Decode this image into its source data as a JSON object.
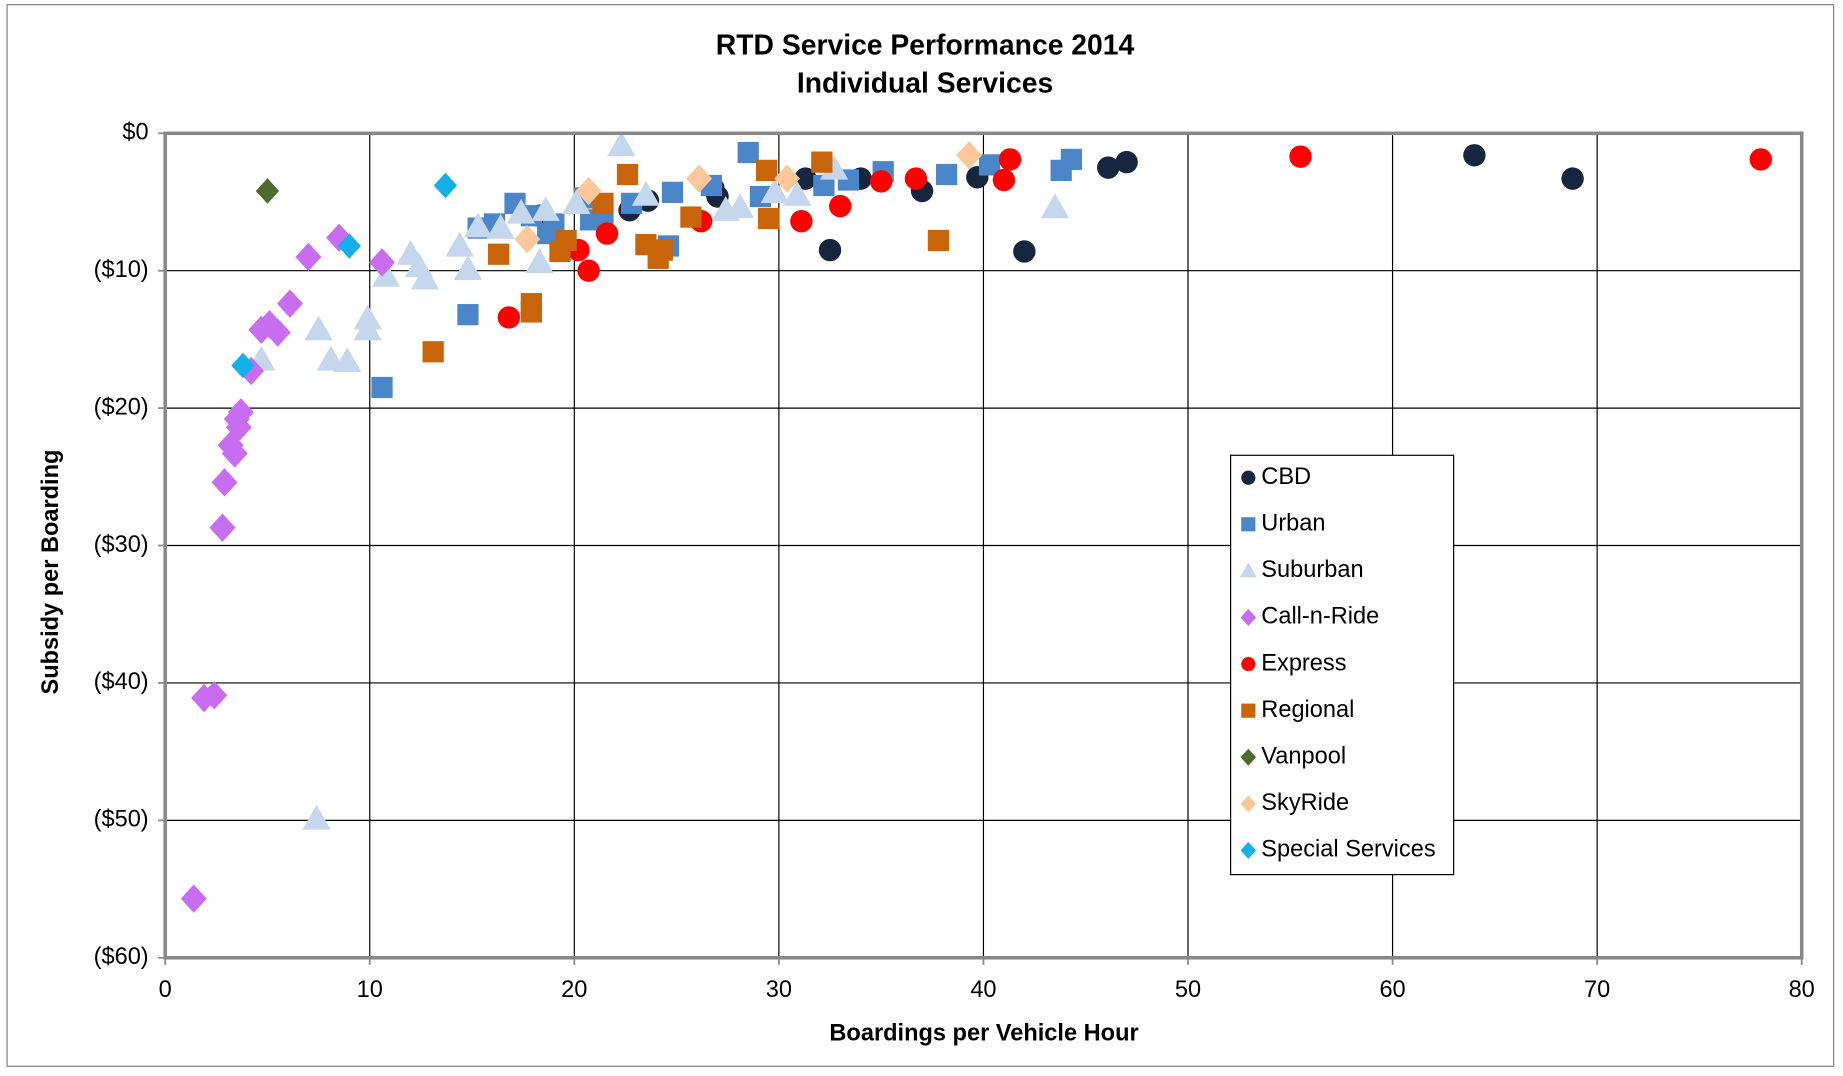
{
  "chart_data": {
    "type": "scatter",
    "title": "RTD Service Performance 2014",
    "subtitle": "Individual Services",
    "x_label": "Boardings per Vehicle Hour",
    "y_label": "Subsidy per Boarding",
    "xlim": [
      0,
      80
    ],
    "xticks": [
      0,
      10,
      20,
      30,
      40,
      50,
      60,
      70,
      80
    ],
    "ylim": [
      -60,
      0
    ],
    "yticks": [
      {
        "value": -60,
        "label": "($60)"
      },
      {
        "value": -50,
        "label": "($50)"
      },
      {
        "value": -40,
        "label": "($40)"
      },
      {
        "value": -30,
        "label": "($30)"
      },
      {
        "value": -20,
        "label": "($20)"
      },
      {
        "value": -10,
        "label": "($10)"
      },
      {
        "value": 0,
        "label": "$0"
      }
    ],
    "grid": true,
    "legend": "right",
    "series": [
      {
        "name": "CBD",
        "color": "#17263f",
        "marker": "circle",
        "x": [
          32.5,
          42.0,
          37.0,
          39.7,
          46.1,
          47.0,
          64.0,
          68.8,
          22.7,
          23.6,
          27.0,
          31.3,
          34.0,
          18.3,
          26.8
        ],
        "values": [
          -8.5,
          -8.6,
          -4.2,
          -3.2,
          -2.5,
          -2.1,
          -1.6,
          -3.3,
          -5.6,
          -4.9,
          -4.6,
          -3.3,
          -3.3,
          -6.0,
          -4.0
        ]
      },
      {
        "name": "Urban",
        "color": "#4a86c8",
        "marker": "square",
        "x": [
          28.5,
          44.3,
          43.8,
          40.3,
          38.2,
          35.1,
          33.4,
          32.2,
          29.1,
          26.7,
          24.8,
          24.6,
          22.8,
          20.5,
          17.1,
          17.9,
          19.0,
          16.1,
          15.3,
          20.8,
          14.8,
          10.6,
          18.7,
          21.4
        ],
        "values": [
          -1.4,
          -1.9,
          -2.7,
          -2.3,
          -3.0,
          -2.8,
          -3.4,
          -3.8,
          -4.6,
          -3.8,
          -4.3,
          -8.2,
          -5.1,
          -4.7,
          -5.1,
          -6.0,
          -6.6,
          -6.6,
          -6.9,
          -6.3,
          -13.2,
          -18.5,
          -7.3,
          -6.1
        ]
      },
      {
        "name": "Suburban",
        "color": "#c5d7ec",
        "marker": "triangle",
        "x": [
          22.3,
          7.4,
          4.7,
          7.5,
          8.1,
          8.9,
          9.9,
          9.9,
          10.8,
          12.0,
          12.4,
          12.7,
          14.4,
          14.8,
          15.3,
          16.4,
          17.4,
          18.3,
          18.6,
          20.1,
          27.4,
          28.1,
          29.8,
          30.9,
          32.7,
          43.5,
          23.5
        ],
        "values": [
          -0.9,
          -49.9,
          -16.5,
          -14.3,
          -16.5,
          -16.6,
          -13.5,
          -14.3,
          -10.4,
          -8.8,
          -9.7,
          -10.6,
          -8.2,
          -9.9,
          -6.8,
          -6.9,
          -5.8,
          -9.4,
          -5.6,
          -5.1,
          -5.6,
          -5.4,
          -4.3,
          -4.5,
          -2.6,
          -5.4,
          -4.5
        ]
      },
      {
        "name": "Call-n-Ride",
        "color": "#c86cf0",
        "marker": "diamond",
        "x": [
          1.4,
          1.9,
          2.4,
          2.8,
          2.9,
          3.2,
          3.4,
          3.6,
          3.5,
          3.7,
          4.2,
          4.7,
          5.1,
          5.5,
          6.1,
          7.0,
          8.5,
          10.6
        ],
        "values": [
          -55.7,
          -41.1,
          -40.9,
          -28.7,
          -25.4,
          -22.7,
          -23.3,
          -21.4,
          -20.8,
          -20.3,
          -17.3,
          -14.3,
          -13.9,
          -14.5,
          -12.4,
          -9.0,
          -7.6,
          -9.4
        ]
      },
      {
        "name": "Express",
        "color": "#ff0000",
        "marker": "circle",
        "x": [
          16.8,
          20.2,
          20.7,
          21.6,
          26.2,
          31.1,
          33.0,
          35.0,
          36.7,
          41.0,
          41.3,
          55.5,
          78.0
        ],
        "values": [
          -13.4,
          -8.5,
          -10.0,
          -7.3,
          -6.4,
          -6.4,
          -5.3,
          -3.5,
          -3.3,
          -3.4,
          -1.9,
          -1.7,
          -1.9
        ]
      },
      {
        "name": "Regional",
        "color": "#c8650a",
        "marker": "square",
        "x": [
          13.1,
          16.3,
          17.9,
          17.9,
          19.3,
          19.6,
          21.4,
          22.6,
          23.5,
          24.1,
          24.3,
          25.7,
          29.4,
          29.5,
          32.1,
          37.8
        ],
        "values": [
          -15.9,
          -8.8,
          -13.0,
          -12.4,
          -8.6,
          -7.8,
          -5.1,
          -3.0,
          -8.1,
          -9.1,
          -8.5,
          -6.1,
          -2.7,
          -6.2,
          -2.1,
          -7.8
        ]
      },
      {
        "name": "Vanpool",
        "color": "#4e6b2e",
        "marker": "diamond",
        "x": [
          5.0
        ],
        "values": [
          -4.2
        ]
      },
      {
        "name": "SkyRide",
        "color": "#fcc89a",
        "marker": "diamond",
        "x": [
          17.7,
          20.7,
          26.1,
          30.4,
          39.3
        ],
        "values": [
          -7.7,
          -4.2,
          -3.3,
          -3.3,
          -1.6
        ]
      },
      {
        "name": "Special Services",
        "color": "#13b0ea",
        "marker": "diamond",
        "x": [
          3.8,
          9.0,
          13.7
        ],
        "values": [
          -16.9,
          -8.2,
          -3.8
        ]
      }
    ]
  }
}
